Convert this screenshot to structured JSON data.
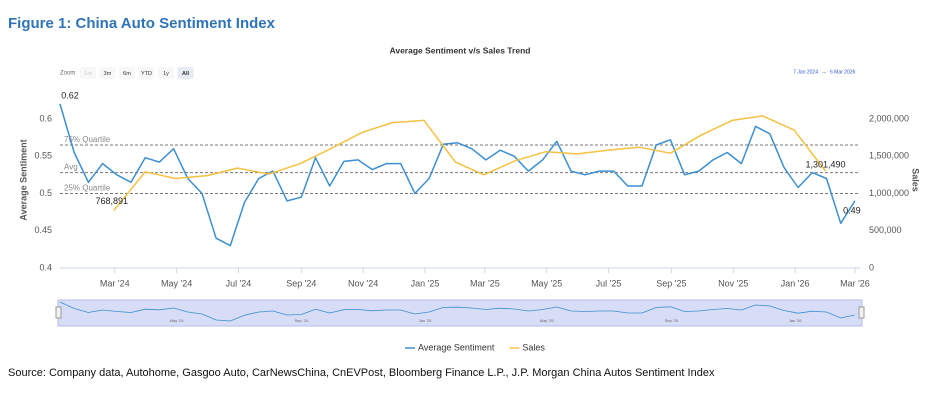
{
  "figure_title": "Figure 1: China Auto Sentiment Index",
  "source": "Source: Company data, Autohome, Gasgoo Auto, CarNewsChina, CnEVPost, Bloomberg Finance L.P., J.P. Morgan China Autos Sentiment Index",
  "chart_data": {
    "type": "line",
    "title": "Average Sentiment v/s Sales Trend",
    "range_selector": {
      "label": "Zoom",
      "buttons": [
        "1m",
        "3m",
        "6m",
        "YTD",
        "1y",
        "All"
      ],
      "selected": "All",
      "from": "7 Jan 2024",
      "arrow": "→",
      "to": "6 Mar 2026"
    },
    "y_label": "Average Sentiment",
    "y2_label": "Sales",
    "xlim": [
      "2024-01-07",
      "2026-03-06"
    ],
    "ylim": [
      0.4,
      0.62
    ],
    "yticks": [
      0.4,
      0.45,
      0.5,
      0.55,
      0.6
    ],
    "y2lim": [
      0,
      2200000
    ],
    "y2ticks": [
      0,
      {
        "value": 500000,
        "label": "500,000"
      },
      {
        "value": 1000000,
        "label": "1,000,000"
      },
      {
        "value": 1500000,
        "label": "1,500,000"
      },
      {
        "value": 2000000,
        "label": "2,000,000"
      }
    ],
    "xticks": [
      {
        "value": "2024-03-01",
        "label": "Mar '24"
      },
      {
        "value": "2024-05-01",
        "label": "May '24"
      },
      {
        "value": "2024-07-01",
        "label": "Jul '24"
      },
      {
        "value": "2024-09-01",
        "label": "Sep '24"
      },
      {
        "value": "2024-11-01",
        "label": "Nov '24"
      },
      {
        "value": "2025-01-01",
        "label": "Jan '25"
      },
      {
        "value": "2025-03-01",
        "label": "Mar '25"
      },
      {
        "value": "2025-05-01",
        "label": "May '25"
      },
      {
        "value": "2025-07-01",
        "label": "Jul '25"
      },
      {
        "value": "2025-09-01",
        "label": "Sep '25"
      },
      {
        "value": "2025-11-01",
        "label": "Nov '25"
      },
      {
        "value": "2026-01-01",
        "label": "Jan '26"
      },
      {
        "value": "2026-03-01",
        "label": "Mar '26"
      }
    ],
    "reference_lines": [
      {
        "label": "75% Quartile",
        "value": 0.565
      },
      {
        "label": "Avg",
        "value": 0.528
      },
      {
        "label": "25% Quartile",
        "value": 0.5
      }
    ],
    "series": [
      {
        "name": "Average Sentiment",
        "color": "#3d8fd1",
        "x": [
          "2024-01-07",
          "2024-01-21",
          "2024-02-04",
          "2024-02-18",
          "2024-03-03",
          "2024-03-17",
          "2024-03-31",
          "2024-04-14",
          "2024-04-28",
          "2024-05-12",
          "2024-05-26",
          "2024-06-09",
          "2024-06-23",
          "2024-07-07",
          "2024-07-21",
          "2024-08-04",
          "2024-08-18",
          "2024-09-01",
          "2024-09-15",
          "2024-09-29",
          "2024-10-13",
          "2024-10-27",
          "2024-11-10",
          "2024-11-24",
          "2024-12-08",
          "2024-12-22",
          "2025-01-05",
          "2025-01-19",
          "2025-02-02",
          "2025-02-16",
          "2025-03-02",
          "2025-03-16",
          "2025-03-30",
          "2025-04-13",
          "2025-04-27",
          "2025-05-11",
          "2025-05-25",
          "2025-06-08",
          "2025-06-22",
          "2025-07-06",
          "2025-07-20",
          "2025-08-03",
          "2025-08-17",
          "2025-08-31",
          "2025-09-14",
          "2025-09-28",
          "2025-10-12",
          "2025-10-26",
          "2025-11-09",
          "2025-11-23",
          "2025-12-07",
          "2025-12-21",
          "2026-01-04",
          "2026-01-18",
          "2026-02-01",
          "2026-02-15",
          "2026-03-01"
        ],
        "values": [
          0.62,
          0.555,
          0.515,
          0.54,
          0.525,
          0.515,
          0.548,
          0.542,
          0.56,
          0.52,
          0.5,
          0.44,
          0.43,
          0.488,
          0.52,
          0.53,
          0.49,
          0.495,
          0.548,
          0.51,
          0.543,
          0.545,
          0.532,
          0.54,
          0.54,
          0.5,
          0.52,
          0.566,
          0.568,
          0.56,
          0.545,
          0.558,
          0.55,
          0.53,
          0.545,
          0.57,
          0.53,
          0.525,
          0.53,
          0.53,
          0.51,
          0.51,
          0.565,
          0.572,
          0.525,
          0.53,
          0.545,
          0.555,
          0.54,
          0.59,
          0.58,
          0.535,
          0.508,
          0.528,
          0.52,
          0.46,
          0.49
        ]
      },
      {
        "name": "Sales",
        "color": "#f4c142",
        "axis": "y2",
        "x": [
          "2024-02-29",
          "2024-03-31",
          "2024-04-30",
          "2024-05-31",
          "2024-06-30",
          "2024-07-31",
          "2024-08-31",
          "2024-09-30",
          "2024-10-31",
          "2024-11-30",
          "2024-12-31",
          "2025-01-31",
          "2025-02-28",
          "2025-03-31",
          "2025-04-30",
          "2025-05-31",
          "2025-06-30",
          "2025-07-31",
          "2025-08-31",
          "2025-09-30",
          "2025-10-31",
          "2025-11-30",
          "2025-12-31",
          "2026-01-31"
        ],
        "values": [
          768891,
          1290000,
          1200000,
          1240000,
          1340000,
          1260000,
          1400000,
          1600000,
          1820000,
          1950000,
          1980000,
          1420000,
          1250000,
          1440000,
          1560000,
          1530000,
          1580000,
          1620000,
          1540000,
          1780000,
          1980000,
          2040000,
          1850000,
          1301490
        ]
      }
    ],
    "annotations": [
      {
        "label": "0.62",
        "x": "2024-01-07",
        "y": 0.62
      },
      {
        "label": "768,891",
        "x": "2024-02-29",
        "y": 768891,
        "axis": "y2"
      },
      {
        "label": "1,301,490",
        "x": "2026-01-31",
        "y": 1301490,
        "axis": "y2"
      },
      {
        "label": "0.49",
        "x": "2026-03-01",
        "y": 0.49
      }
    ],
    "navigator": {
      "xticks": [
        {
          "value": "2024-05-01",
          "label": "May '24"
        },
        {
          "value": "2024-09-01",
          "label": "Sep '24"
        },
        {
          "value": "2025-01-01",
          "label": "Jan '25"
        },
        {
          "value": "2025-05-01",
          "label": "May '25"
        },
        {
          "value": "2025-09-01",
          "label": "Sep '25"
        },
        {
          "value": "2026-01-01",
          "label": "Jan '26"
        }
      ]
    },
    "legend": "bottom"
  }
}
